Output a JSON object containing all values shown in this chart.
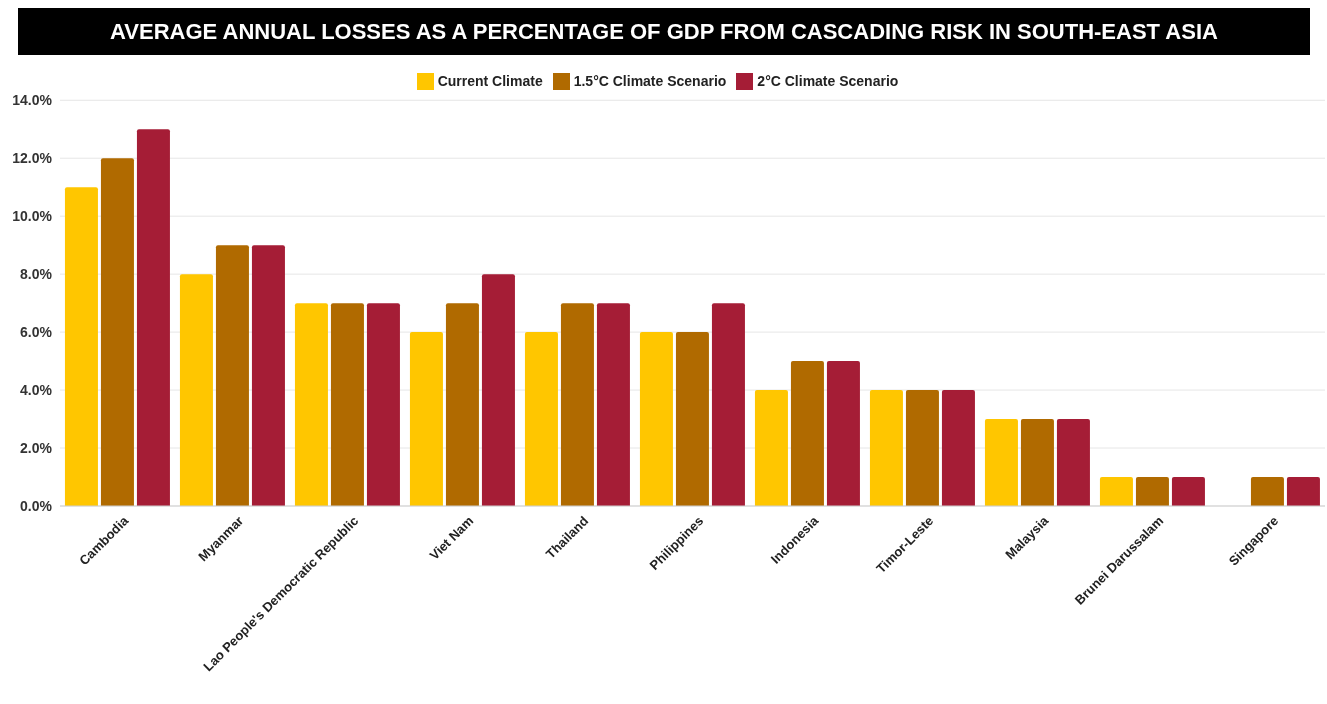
{
  "chart_data": {
    "type": "bar",
    "title": "AVERAGE ANNUAL LOSSES AS A PERCENTAGE OF GDP FROM CASCADING RISK IN SOUTH-EAST ASIA",
    "categories": [
      "Cambodia",
      "Myanmar",
      "Lao People's Democratic Republic",
      "Viet Nam",
      "Thailand",
      "Philippines",
      "Indonesia",
      "Timor-Leste",
      "Malaysia",
      "Brunei Darussalam",
      "Singapore"
    ],
    "series": [
      {
        "name": "Current Climate",
        "color": "#ffc600",
        "values": [
          11,
          8,
          7,
          6,
          6,
          6,
          4,
          4,
          3,
          1,
          null
        ]
      },
      {
        "name": "1.5°C Climate Scenario",
        "color": "#b06a00",
        "values": [
          12,
          9,
          7,
          7,
          7,
          6,
          5,
          4,
          3,
          1,
          1
        ]
      },
      {
        "name": "2°C Climate Scenario",
        "color": "#a51d36",
        "values": [
          13,
          9,
          7,
          8,
          7,
          7,
          5,
          4,
          3,
          1,
          1
        ]
      }
    ],
    "ylim": [
      0,
      14
    ],
    "yticks": [
      {
        "value": 0,
        "label": "0.0%"
      },
      {
        "value": 2,
        "label": "2.0%"
      },
      {
        "value": 4,
        "label": "4.0%"
      },
      {
        "value": 6,
        "label": "6.0%"
      },
      {
        "value": 8,
        "label": "8.0%"
      },
      {
        "value": 10,
        "label": "10.0%"
      },
      {
        "value": 12,
        "label": "12.0%"
      },
      {
        "value": 14,
        "label": "14.0%"
      }
    ],
    "grid": "y",
    "legend": "top"
  }
}
